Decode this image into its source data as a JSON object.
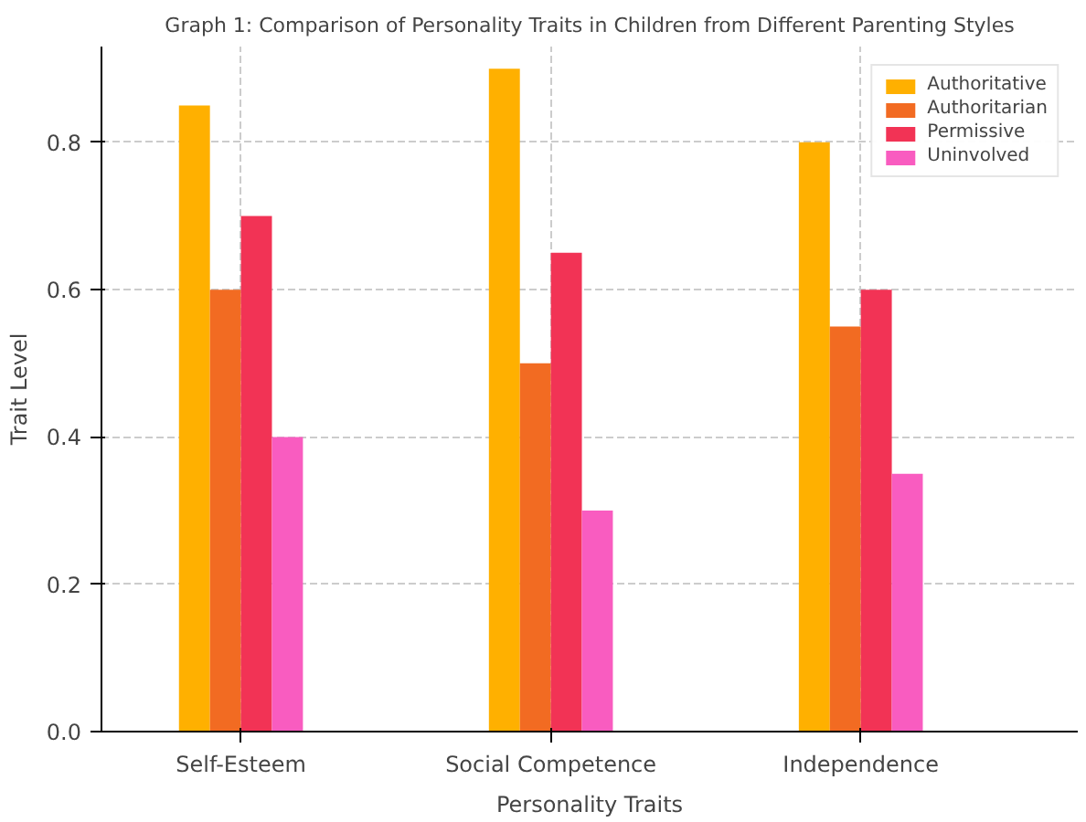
{
  "chart_data": {
    "type": "bar",
    "title": "Graph 1: Comparison of Personality Traits in Children from Different Parenting Styles",
    "xlabel": "Personality Traits",
    "ylabel": "Trait Level",
    "categories": [
      "Self-Esteem",
      "Social Competence",
      "Independence"
    ],
    "series": [
      {
        "name": "Authoritative",
        "color": "#ffb000",
        "values": [
          0.85,
          0.9,
          0.8
        ]
      },
      {
        "name": "Authoritarian",
        "color": "#f26b22",
        "values": [
          0.6,
          0.5,
          0.55
        ]
      },
      {
        "name": "Permissive",
        "color": "#f23355",
        "values": [
          0.7,
          0.65,
          0.6
        ]
      },
      {
        "name": "Uninvolved",
        "color": "#f95cc0",
        "values": [
          0.4,
          0.3,
          0.35
        ]
      }
    ],
    "ylim": [
      0,
      0.93
    ],
    "yticks": [
      {
        "value": 0,
        "label": "0.0"
      },
      0.2,
      0.4,
      0.6,
      0.8
    ],
    "grid": true,
    "legend": "top right"
  }
}
